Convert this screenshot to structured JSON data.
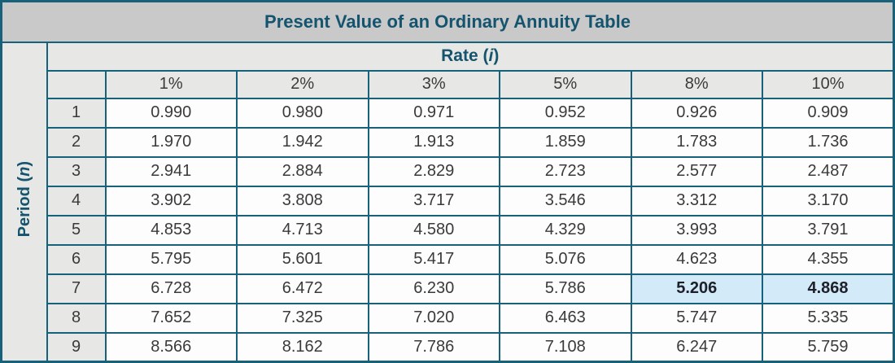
{
  "title": "Present Value of an Ordinary Annuity Table",
  "rate_header": {
    "label_prefix": "Rate (",
    "symbol": "i",
    "label_suffix": ")"
  },
  "period_header": {
    "label_prefix": "Period (",
    "symbol": "n",
    "label_suffix": ")"
  },
  "columns": [
    "1%",
    "2%",
    "3%",
    "5%",
    "8%",
    "10%"
  ],
  "rows": [
    {
      "period": "1",
      "values": [
        "0.990",
        "0.980",
        "0.971",
        "0.952",
        "0.926",
        "0.909"
      ]
    },
    {
      "period": "2",
      "values": [
        "1.970",
        "1.942",
        "1.913",
        "1.859",
        "1.783",
        "1.736"
      ]
    },
    {
      "period": "3",
      "values": [
        "2.941",
        "2.884",
        "2.829",
        "2.723",
        "2.577",
        "2.487"
      ]
    },
    {
      "period": "4",
      "values": [
        "3.902",
        "3.808",
        "3.717",
        "3.546",
        "3.312",
        "3.170"
      ]
    },
    {
      "period": "5",
      "values": [
        "4.853",
        "4.713",
        "4.580",
        "4.329",
        "3.993",
        "3.791"
      ]
    },
    {
      "period": "6",
      "values": [
        "5.795",
        "5.601",
        "5.417",
        "5.076",
        "4.623",
        "4.355"
      ]
    },
    {
      "period": "7",
      "values": [
        "6.728",
        "6.472",
        "6.230",
        "5.786",
        "5.206",
        "4.868"
      ]
    },
    {
      "period": "8",
      "values": [
        "7.652",
        "7.325",
        "7.020",
        "6.463",
        "5.747",
        "5.335"
      ]
    },
    {
      "period": "9",
      "values": [
        "8.566",
        "8.162",
        "7.786",
        "7.108",
        "6.247",
        "5.759"
      ]
    }
  ],
  "highlight": {
    "period": "7",
    "highlighted_columns": [
      "8%",
      "10%"
    ],
    "highlighted_values": [
      "5.206",
      "4.868"
    ]
  },
  "colors": {
    "border": "#17617b",
    "accent_text": "#14546e",
    "title_bg": "#c9c9c9",
    "header_bg": "#e7e7e5",
    "cell_bg": "#fdfdfd",
    "highlight_bg": "#d3eaf8",
    "body_text": "#3a3a3a"
  }
}
